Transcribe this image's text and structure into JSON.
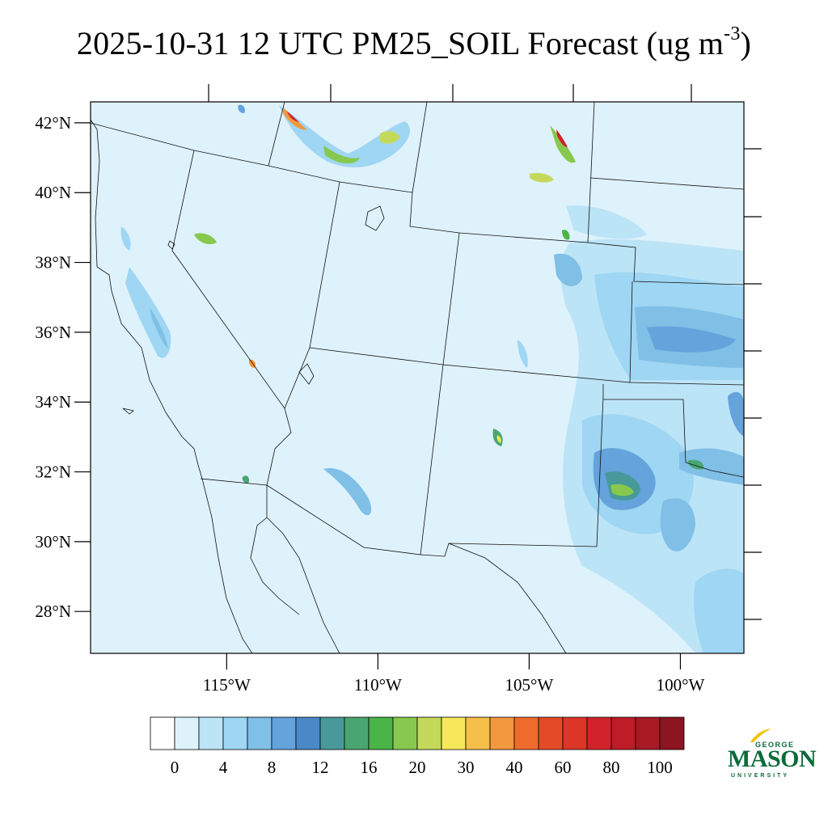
{
  "title": {
    "main": "2025-10-31 12 UTC PM25_SOIL Forecast (ug m",
    "exponent": "-3",
    "close": ")"
  },
  "map": {
    "lon_range": [
      -119.5,
      -97.9
    ],
    "lat_range": [
      26.8,
      42.6
    ],
    "lat_ticks": [
      {
        "value": 42,
        "label": "42°N"
      },
      {
        "value": 40,
        "label": "40°N"
      },
      {
        "value": 38,
        "label": "38°N"
      },
      {
        "value": 36,
        "label": "36°N"
      },
      {
        "value": 34,
        "label": "34°N"
      },
      {
        "value": 32,
        "label": "32°N"
      },
      {
        "value": 30,
        "label": "30°N"
      },
      {
        "value": 28,
        "label": "28°N"
      }
    ],
    "lon_ticks": [
      {
        "value": -115,
        "label": "115°W"
      },
      {
        "value": -110,
        "label": "110°W"
      },
      {
        "value": -105,
        "label": "105°W"
      },
      {
        "value": -100,
        "label": "100°W"
      }
    ],
    "background_color": "#def2fb"
  },
  "colorbar": {
    "colors": [
      "#ffffff",
      "#def2fb",
      "#bce4f7",
      "#9ed6f3",
      "#80bfe6",
      "#64a3dc",
      "#4a88c8",
      "#48999a",
      "#4aa670",
      "#4ab447",
      "#87c84e",
      "#c4d95a",
      "#f7e85a",
      "#f6be4a",
      "#f2983e",
      "#ef6c2d",
      "#e44a28",
      "#dc3628",
      "#d2232a",
      "#be1c27",
      "#a81a24",
      "#8c1521"
    ],
    "labels": [
      {
        "index": 1,
        "text": "0"
      },
      {
        "index": 3,
        "text": "4"
      },
      {
        "index": 5,
        "text": "8"
      },
      {
        "index": 7,
        "text": "12"
      },
      {
        "index": 9,
        "text": "16"
      },
      {
        "index": 11,
        "text": "20"
      },
      {
        "index": 13,
        "text": "30"
      },
      {
        "index": 15,
        "text": "40"
      },
      {
        "index": 17,
        "text": "60"
      },
      {
        "index": 19,
        "text": "80"
      },
      {
        "index": 21,
        "text": "100"
      }
    ]
  },
  "logo": {
    "top": "GEORGE",
    "name": "MASON",
    "bottom": "UNIVERSITY",
    "color": "#0b6a3a",
    "accent": "#f2c200"
  }
}
